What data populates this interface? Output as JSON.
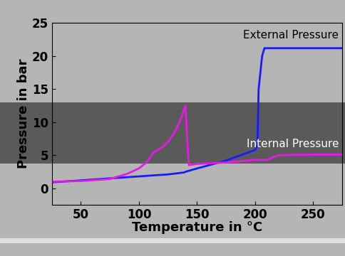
{
  "chart_data": {
    "type": "line",
    "x_label": "Temperature in °C",
    "y_label": "Pressure in bar",
    "xlim": [
      25,
      275
    ],
    "xticks": [
      50,
      100,
      150,
      200,
      250
    ],
    "ylim": [
      -2.5,
      25
    ],
    "yticks": [
      0,
      5,
      10,
      15,
      20,
      25
    ],
    "grid": false,
    "series": [
      {
        "name": "External Pressure",
        "color": "#1a1aff",
        "x": [
          25,
          50,
          75,
          100,
          125,
          139,
          140,
          150,
          175,
          200,
          202,
          203,
          206,
          208,
          275
        ],
        "values": [
          0.9,
          1.2,
          1.5,
          1.8,
          2.1,
          2.4,
          2.5,
          3.0,
          4.2,
          5.8,
          6.5,
          15.0,
          20.0,
          21.2,
          21.2
        ]
      },
      {
        "name": "Internal Pressure",
        "color": "#e619e6",
        "x": [
          25,
          50,
          75,
          90,
          100,
          107,
          112,
          115,
          120,
          125,
          130,
          135,
          140,
          142,
          143,
          150,
          175,
          200,
          210,
          220,
          250,
          275
        ],
        "values": [
          1.0,
          1.1,
          1.4,
          2.2,
          3.0,
          4.0,
          5.3,
          5.7,
          6.2,
          7.0,
          8.3,
          10.0,
          12.5,
          6.0,
          3.5,
          3.7,
          3.9,
          4.3,
          4.3,
          5.0,
          5.1,
          5.1
        ]
      }
    ]
  }
}
